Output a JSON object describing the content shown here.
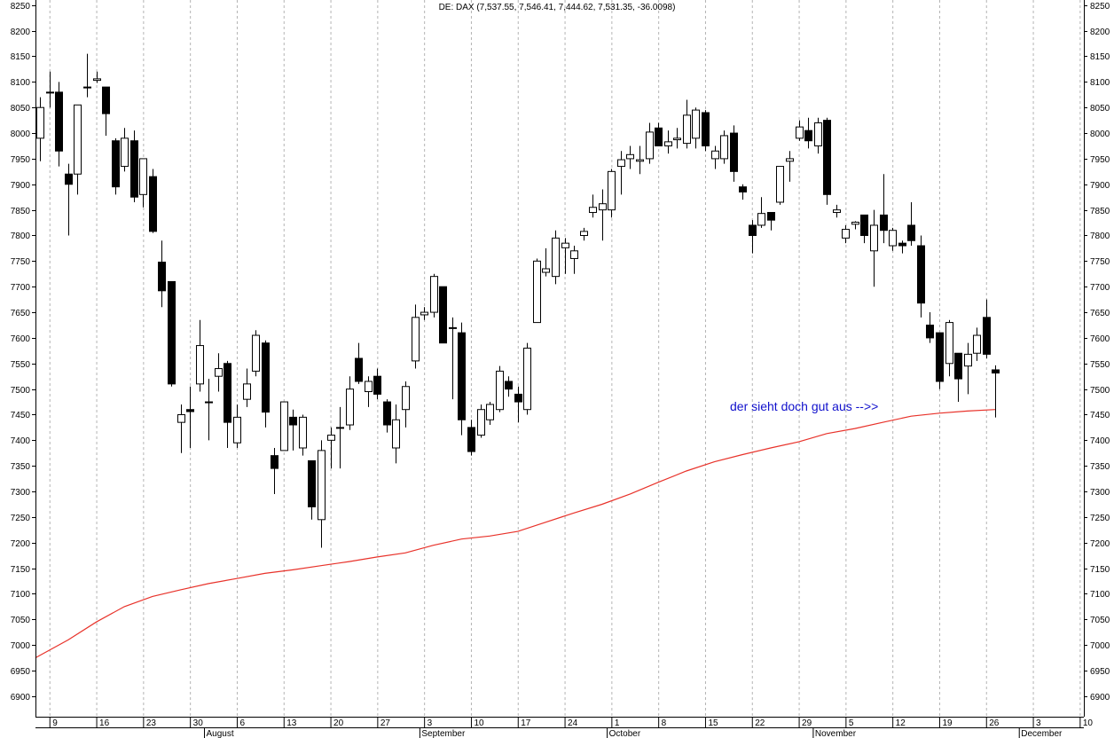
{
  "chart_data": {
    "type": "candlestick",
    "title": "DE: DAX (7,537.55, 7,546.41, 7,444.62, 7,531.35, -36.0098)",
    "annotation": "der sieht doch gut aus -->>",
    "ylim": [
      6860,
      8260
    ],
    "yticks": [
      6900,
      6950,
      7000,
      7050,
      7100,
      7150,
      7200,
      7250,
      7300,
      7350,
      7400,
      7450,
      7500,
      7550,
      7600,
      7650,
      7700,
      7750,
      7800,
      7850,
      7900,
      7950,
      8000,
      8050,
      8100,
      8150,
      8200,
      8250
    ],
    "grid": "vertical-dashed",
    "x_day_labels": [
      {
        "label": "9",
        "idx": 1
      },
      {
        "label": "16",
        "idx": 6
      },
      {
        "label": "23",
        "idx": 11
      },
      {
        "label": "30",
        "idx": 16
      },
      {
        "label": "6",
        "idx": 21
      },
      {
        "label": "13",
        "idx": 26
      },
      {
        "label": "20",
        "idx": 31
      },
      {
        "label": "27",
        "idx": 36
      },
      {
        "label": "3",
        "idx": 41
      },
      {
        "label": "10",
        "idx": 46
      },
      {
        "label": "17",
        "idx": 51
      },
      {
        "label": "24",
        "idx": 56
      },
      {
        "label": "1",
        "idx": 61
      },
      {
        "label": "8",
        "idx": 66
      },
      {
        "label": "15",
        "idx": 71
      },
      {
        "label": "22",
        "idx": 76
      },
      {
        "label": "29",
        "idx": 81
      },
      {
        "label": "5",
        "idx": 86
      },
      {
        "label": "12",
        "idx": 91
      },
      {
        "label": "19",
        "idx": 96
      },
      {
        "label": "26",
        "idx": 101
      },
      {
        "label": "3",
        "idx": 106
      },
      {
        "label": "10",
        "idx": 111
      }
    ],
    "x_month_labels": [
      {
        "label": "August",
        "idx": 17.5
      },
      {
        "label": "September",
        "idx": 40.5
      },
      {
        "label": "October",
        "idx": 60.5
      },
      {
        "label": "November",
        "idx": 82.5
      },
      {
        "label": "December",
        "idx": 104.5
      }
    ],
    "x_start_idx": -0.5,
    "x_end_idx": 111.5,
    "candles": [
      {
        "o": 7990,
        "h": 8070,
        "l": 7945,
        "c": 8050
      },
      {
        "o": 8080,
        "h": 8120,
        "l": 8050,
        "c": 8080
      },
      {
        "o": 8080,
        "h": 8100,
        "l": 7935,
        "c": 7965
      },
      {
        "o": 7920,
        "h": 7940,
        "l": 7800,
        "c": 7900
      },
      {
        "o": 7920,
        "h": 8055,
        "l": 7880,
        "c": 8055
      },
      {
        "o": 8090,
        "h": 8155,
        "l": 8070,
        "c": 8090
      },
      {
        "o": 8103,
        "h": 8120,
        "l": 8098,
        "c": 8106
      },
      {
        "o": 8090,
        "h": 8090,
        "l": 7995,
        "c": 8038
      },
      {
        "o": 7985,
        "h": 7990,
        "l": 7880,
        "c": 7895
      },
      {
        "o": 7935,
        "h": 8010,
        "l": 7925,
        "c": 7990
      },
      {
        "o": 7985,
        "h": 8005,
        "l": 7865,
        "c": 7875
      },
      {
        "o": 7880,
        "h": 7945,
        "l": 7855,
        "c": 7950
      },
      {
        "o": 7915,
        "h": 7930,
        "l": 7805,
        "c": 7808
      },
      {
        "o": 7748,
        "h": 7790,
        "l": 7660,
        "c": 7692
      },
      {
        "o": 7710,
        "h": 7710,
        "l": 7505,
        "c": 7510
      },
      {
        "o": 7435,
        "h": 7470,
        "l": 7375,
        "c": 7450
      },
      {
        "o": 7460,
        "h": 7505,
        "l": 7385,
        "c": 7456
      },
      {
        "o": 7510,
        "h": 7635,
        "l": 7495,
        "c": 7585
      },
      {
        "o": 7475,
        "h": 7520,
        "l": 7400,
        "c": 7475
      },
      {
        "o": 7525,
        "h": 7570,
        "l": 7495,
        "c": 7540
      },
      {
        "o": 7550,
        "h": 7555,
        "l": 7385,
        "c": 7435
      },
      {
        "o": 7395,
        "h": 7470,
        "l": 7385,
        "c": 7445
      },
      {
        "o": 7480,
        "h": 7540,
        "l": 7465,
        "c": 7510
      },
      {
        "o": 7535,
        "h": 7615,
        "l": 7525,
        "c": 7605
      },
      {
        "o": 7590,
        "h": 7595,
        "l": 7425,
        "c": 7455
      },
      {
        "o": 7370,
        "h": 7385,
        "l": 7295,
        "c": 7345
      },
      {
        "o": 7380,
        "h": 7475,
        "l": 7380,
        "c": 7475
      },
      {
        "o": 7445,
        "h": 7460,
        "l": 7380,
        "c": 7430
      },
      {
        "o": 7385,
        "h": 7450,
        "l": 7370,
        "c": 7445
      },
      {
        "o": 7360,
        "h": 7360,
        "l": 7245,
        "c": 7270
      },
      {
        "o": 7245,
        "h": 7400,
        "l": 7190,
        "c": 7380
      },
      {
        "o": 7400,
        "h": 7425,
        "l": 7345,
        "c": 7410
      },
      {
        "o": 7425,
        "h": 7465,
        "l": 7345,
        "c": 7425
      },
      {
        "o": 7430,
        "h": 7525,
        "l": 7420,
        "c": 7500
      },
      {
        "o": 7560,
        "h": 7590,
        "l": 7510,
        "c": 7515
      },
      {
        "o": 7495,
        "h": 7525,
        "l": 7465,
        "c": 7515
      },
      {
        "o": 7525,
        "h": 7540,
        "l": 7480,
        "c": 7490
      },
      {
        "o": 7475,
        "h": 7480,
        "l": 7415,
        "c": 7430
      },
      {
        "o": 7385,
        "h": 7470,
        "l": 7355,
        "c": 7440
      },
      {
        "o": 7460,
        "h": 7515,
        "l": 7425,
        "c": 7505
      },
      {
        "o": 7555,
        "h": 7665,
        "l": 7540,
        "c": 7640
      },
      {
        "o": 7645,
        "h": 7660,
        "l": 7635,
        "c": 7650
      },
      {
        "o": 7650,
        "h": 7725,
        "l": 7640,
        "c": 7720
      },
      {
        "o": 7700,
        "h": 7700,
        "l": 7590,
        "c": 7590
      },
      {
        "o": 7620,
        "h": 7640,
        "l": 7480,
        "c": 7620
      },
      {
        "o": 7610,
        "h": 7630,
        "l": 7410,
        "c": 7440
      },
      {
        "o": 7425,
        "h": 7440,
        "l": 7370,
        "c": 7378
      },
      {
        "o": 7410,
        "h": 7470,
        "l": 7405,
        "c": 7460
      },
      {
        "o": 7440,
        "h": 7475,
        "l": 7430,
        "c": 7470
      },
      {
        "o": 7460,
        "h": 7545,
        "l": 7455,
        "c": 7535
      },
      {
        "o": 7515,
        "h": 7525,
        "l": 7485,
        "c": 7500
      },
      {
        "o": 7490,
        "h": 7505,
        "l": 7435,
        "c": 7475
      },
      {
        "o": 7460,
        "h": 7590,
        "l": 7450,
        "c": 7580
      },
      {
        "o": 7630,
        "h": 7755,
        "l": 7630,
        "c": 7750
      },
      {
        "o": 7728,
        "h": 7775,
        "l": 7720,
        "c": 7735
      },
      {
        "o": 7720,
        "h": 7810,
        "l": 7705,
        "c": 7795
      },
      {
        "o": 7776,
        "h": 7795,
        "l": 7725,
        "c": 7785
      },
      {
        "o": 7755,
        "h": 7780,
        "l": 7725,
        "c": 7770
      },
      {
        "o": 7800,
        "h": 7815,
        "l": 7790,
        "c": 7808
      },
      {
        "o": 7845,
        "h": 7880,
        "l": 7835,
        "c": 7855
      },
      {
        "o": 7850,
        "h": 7890,
        "l": 7790,
        "c": 7862
      },
      {
        "o": 7850,
        "h": 7930,
        "l": 7835,
        "c": 7925
      },
      {
        "o": 7935,
        "h": 7965,
        "l": 7880,
        "c": 7948
      },
      {
        "o": 7950,
        "h": 7975,
        "l": 7930,
        "c": 7958
      },
      {
        "o": 7945,
        "h": 7975,
        "l": 7920,
        "c": 7948
      },
      {
        "o": 7950,
        "h": 8020,
        "l": 7940,
        "c": 8002
      },
      {
        "o": 8010,
        "h": 8020,
        "l": 7975,
        "c": 7975
      },
      {
        "o": 7975,
        "h": 8005,
        "l": 7960,
        "c": 7983
      },
      {
        "o": 7987,
        "h": 8010,
        "l": 7970,
        "c": 7990
      },
      {
        "o": 7980,
        "h": 8065,
        "l": 7970,
        "c": 8035
      },
      {
        "o": 7990,
        "h": 8050,
        "l": 7970,
        "c": 8045
      },
      {
        "o": 8040,
        "h": 8045,
        "l": 7965,
        "c": 7975
      },
      {
        "o": 7950,
        "h": 7975,
        "l": 7930,
        "c": 7965
      },
      {
        "o": 7950,
        "h": 8005,
        "l": 7940,
        "c": 7995
      },
      {
        "o": 8000,
        "h": 8015,
        "l": 7905,
        "c": 7925
      },
      {
        "o": 7895,
        "h": 7900,
        "l": 7870,
        "c": 7885
      },
      {
        "o": 7820,
        "h": 7830,
        "l": 7765,
        "c": 7800
      },
      {
        "o": 7820,
        "h": 7875,
        "l": 7815,
        "c": 7843
      },
      {
        "o": 7845,
        "h": 7845,
        "l": 7810,
        "c": 7830
      },
      {
        "o": 7865,
        "h": 7935,
        "l": 7860,
        "c": 7935
      },
      {
        "o": 7945,
        "h": 7965,
        "l": 7905,
        "c": 7950
      },
      {
        "o": 7990,
        "h": 8025,
        "l": 7985,
        "c": 8012
      },
      {
        "o": 8005,
        "h": 8030,
        "l": 7970,
        "c": 7985
      },
      {
        "o": 7975,
        "h": 8030,
        "l": 7960,
        "c": 8020
      },
      {
        "o": 8025,
        "h": 8030,
        "l": 7860,
        "c": 7880
      },
      {
        "o": 7845,
        "h": 7860,
        "l": 7835,
        "c": 7850
      },
      {
        "o": 7795,
        "h": 7820,
        "l": 7785,
        "c": 7812
      },
      {
        "o": 7822,
        "h": 7828,
        "l": 7812,
        "c": 7826
      },
      {
        "o": 7840,
        "h": 7840,
        "l": 7785,
        "c": 7800
      },
      {
        "o": 7770,
        "h": 7850,
        "l": 7700,
        "c": 7820
      },
      {
        "o": 7840,
        "h": 7920,
        "l": 7785,
        "c": 7810
      },
      {
        "o": 7780,
        "h": 7815,
        "l": 7770,
        "c": 7810
      },
      {
        "o": 7785,
        "h": 7790,
        "l": 7765,
        "c": 7780
      },
      {
        "o": 7820,
        "h": 7865,
        "l": 7780,
        "c": 7790
      },
      {
        "o": 7780,
        "h": 7800,
        "l": 7640,
        "c": 7668
      },
      {
        "o": 7625,
        "h": 7650,
        "l": 7590,
        "c": 7600
      },
      {
        "o": 7610,
        "h": 7610,
        "l": 7500,
        "c": 7515
      },
      {
        "o": 7550,
        "h": 7635,
        "l": 7525,
        "c": 7630
      },
      {
        "o": 7570,
        "h": 7570,
        "l": 7475,
        "c": 7520
      },
      {
        "o": 7545,
        "h": 7590,
        "l": 7490,
        "c": 7568
      },
      {
        "o": 7570,
        "h": 7620,
        "l": 7555,
        "c": 7605
      },
      {
        "o": 7640,
        "h": 7675,
        "l": 7560,
        "c": 7568
      },
      {
        "o": 7537.55,
        "h": 7546.41,
        "l": 7444.62,
        "c": 7531.35
      }
    ],
    "moving_average": {
      "color": "#e8322a",
      "points": [
        [
          -0.5,
          6975
        ],
        [
          3,
          7010
        ],
        [
          6,
          7045
        ],
        [
          9,
          7075
        ],
        [
          12,
          7095
        ],
        [
          15,
          7108
        ],
        [
          18,
          7120
        ],
        [
          21,
          7130
        ],
        [
          24,
          7140
        ],
        [
          27,
          7147
        ],
        [
          30,
          7155
        ],
        [
          33,
          7163
        ],
        [
          36,
          7172
        ],
        [
          39,
          7180
        ],
        [
          42,
          7195
        ],
        [
          45,
          7207
        ],
        [
          48,
          7213
        ],
        [
          51,
          7222
        ],
        [
          54,
          7240
        ],
        [
          57,
          7258
        ],
        [
          60,
          7275
        ],
        [
          63,
          7295
        ],
        [
          66,
          7318
        ],
        [
          69,
          7340
        ],
        [
          72,
          7358
        ],
        [
          75,
          7372
        ],
        [
          78,
          7385
        ],
        [
          81,
          7397
        ],
        [
          84,
          7413
        ],
        [
          87,
          7423
        ],
        [
          90,
          7435
        ],
        [
          93,
          7447
        ],
        [
          96,
          7453
        ],
        [
          99,
          7457
        ],
        [
          102,
          7460
        ]
      ]
    }
  }
}
